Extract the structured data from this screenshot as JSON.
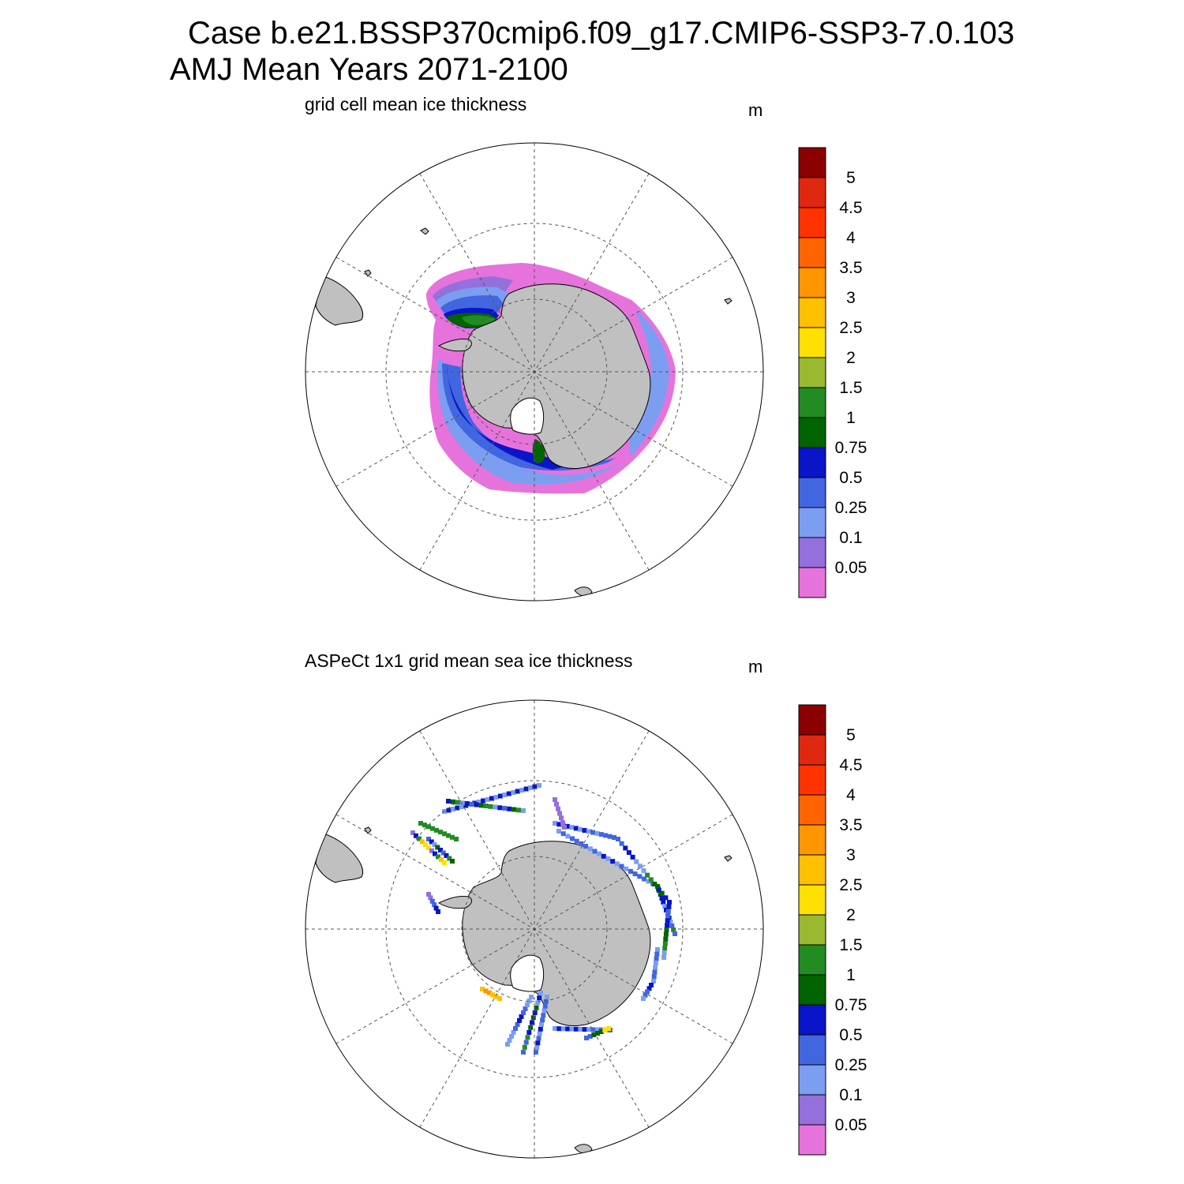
{
  "title": {
    "line1": "Case b.e21.BSSP370cmip6.f09_g17.CMIP6-SSP3-7.0.103",
    "line2": "AMJ Mean   Years 2071-2100"
  },
  "colors": {
    "land": "#c0c0c0",
    "ocean": "#ffffff",
    "grid": "#555555"
  },
  "colorbar": {
    "levels": [
      "0.05",
      "0.1",
      "0.25",
      "0.5",
      "0.75",
      "1",
      "1.5",
      "2",
      "2.5",
      "3",
      "3.5",
      "4",
      "4.5",
      "5"
    ],
    "colors": [
      "#e673dc",
      "#9370db",
      "#7b9ef0",
      "#4166e0",
      "#0a14c8",
      "#006400",
      "#228b22",
      "#9ab830",
      "#ffe000",
      "#ffc000",
      "#ff9600",
      "#ff6400",
      "#ff3200",
      "#e02810",
      "#8b0000"
    ]
  },
  "panels": [
    {
      "title": "grid cell mean ice thickness",
      "units": "m",
      "projection": "south-polar-stereographic",
      "field_style": "continuous-field"
    },
    {
      "title": "ASPeCt 1x1 grid mean sea ice thickness",
      "units": "m",
      "projection": "south-polar-stereographic",
      "field_style": "ship-track-observations"
    }
  ]
}
